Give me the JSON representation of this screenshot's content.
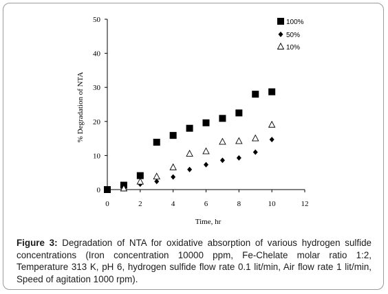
{
  "chart_data": {
    "type": "scatter",
    "xlabel": "Time, hr",
    "ylabel": "% Degradation of NTA",
    "xlim": [
      0,
      12
    ],
    "ylim": [
      0,
      50
    ],
    "xticks": [
      "0",
      "2",
      "4",
      "6",
      "8",
      "10",
      "12"
    ],
    "yticks": [
      "0",
      "10",
      "20",
      "30",
      "40",
      "50"
    ],
    "legend_position": "top-right",
    "grid": false,
    "series": [
      {
        "name": "100%",
        "marker": "square",
        "x": [
          0,
          1,
          2,
          3,
          4,
          5,
          6,
          7,
          8,
          9,
          10
        ],
        "y": [
          0,
          1.3,
          4.1,
          13.9,
          15.9,
          18.0,
          19.6,
          20.9,
          22.5,
          28.0,
          28.7
        ]
      },
      {
        "name": "50%",
        "marker": "diamond",
        "x": [
          0,
          2,
          3,
          4,
          5,
          6,
          7,
          8,
          9,
          10
        ],
        "y": [
          0,
          1.6,
          2.4,
          3.7,
          5.9,
          7.3,
          8.6,
          9.3,
          11.0,
          14.7
        ]
      },
      {
        "name": "10%",
        "marker": "triangle",
        "x": [
          1,
          2,
          3,
          4,
          5,
          6,
          7,
          8,
          9,
          10
        ],
        "y": [
          0.3,
          2.3,
          3.8,
          6.5,
          10.5,
          11.2,
          14.0,
          14.2,
          15.0,
          19.0
        ]
      }
    ]
  },
  "caption": {
    "lead": "Figure 3:",
    "text": " Degradation of NTA for oxidative absorption of various hydrogen sulfide concentrations (Iron concentration 10000 ppm, Fe-Chelate molar ratio 1:2, Temperature 313 K, pH 6, hydrogen sulfide flow rate 0.1 lit/min, Air flow rate 1 lit/min, Speed of agitation 1000 rpm)."
  }
}
